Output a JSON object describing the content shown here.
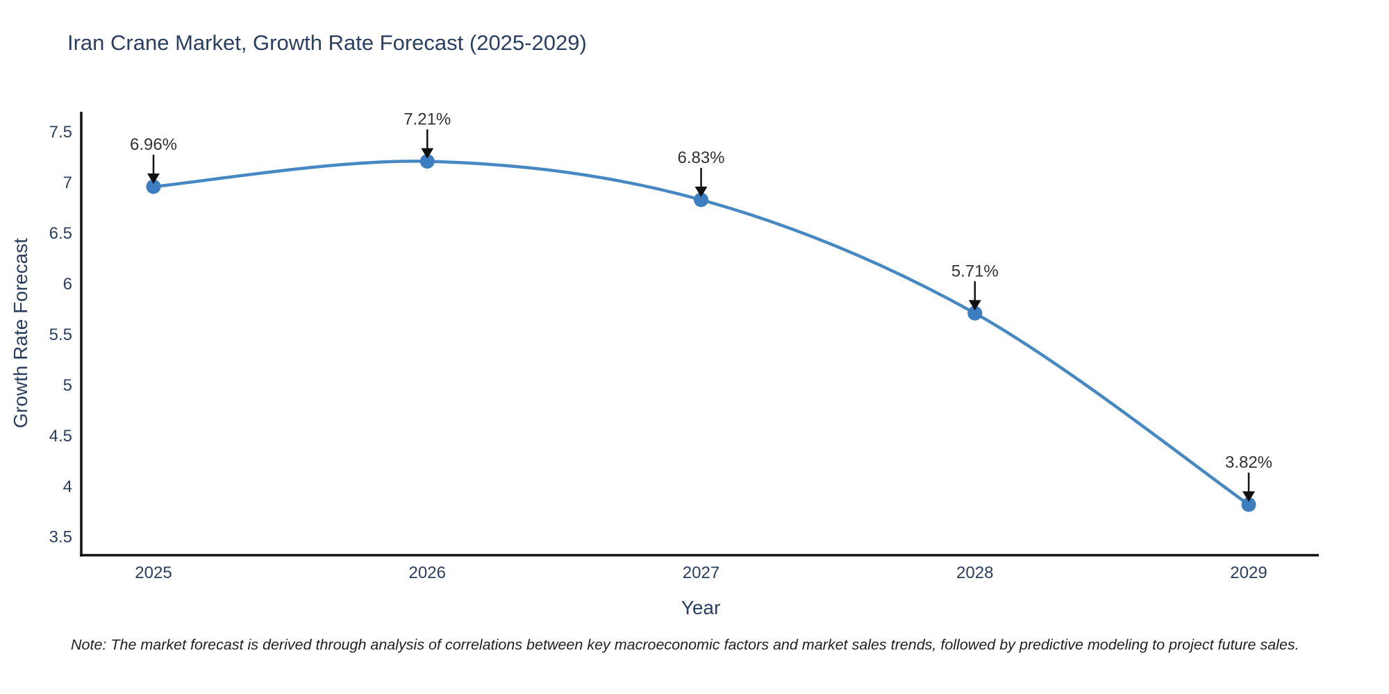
{
  "chart_data": {
    "type": "line",
    "title": "Iran Crane Market, Growth Rate Forecast (2025-2029)",
    "xlabel": "Year",
    "ylabel": "Growth Rate Forecast",
    "x": [
      2025,
      2026,
      2027,
      2028,
      2029
    ],
    "series": [
      {
        "name": "Growth Rate Forecast",
        "values": [
          6.96,
          7.21,
          6.83,
          5.71,
          3.82
        ],
        "point_labels": [
          "6.96%",
          "7.21%",
          "6.83%",
          "5.71%",
          "3.82%"
        ]
      }
    ],
    "yticks": [
      3.5,
      4,
      4.5,
      5,
      5.5,
      6,
      6.5,
      7,
      7.5
    ],
    "ylim": [
      3.32,
      7.7
    ],
    "line_shape": "spline",
    "markers": true,
    "grid": false,
    "legend": false,
    "annotations_arrow": true,
    "colors": {
      "line": "#4688c1",
      "marker": "#3c7ebf",
      "axis": "#111111",
      "tick_text": "#2a3f5f",
      "annotation_text": "#323232",
      "arrow": "#111111",
      "background": "#ffffff"
    }
  },
  "note": "Note: The market forecast is derived through analysis of correlations between key macroeconomic factors and market sales trends, followed by predictive modeling to project future sales."
}
